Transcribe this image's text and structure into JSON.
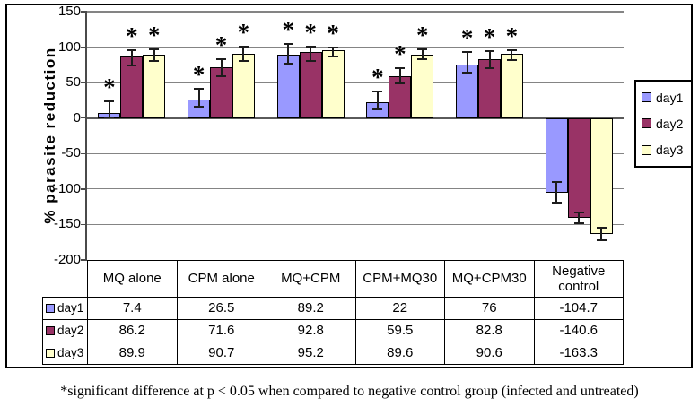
{
  "chart_data": {
    "type": "bar",
    "title": "",
    "ylabel": "% parasite reduction",
    "xlabel": "",
    "ylim": [
      -200,
      150
    ],
    "yticks": [
      150,
      100,
      50,
      0,
      -50,
      -100,
      -150,
      -200
    ],
    "grid": true,
    "legend_position": "right",
    "categories": [
      "MQ alone",
      "CPM alone",
      "MQ+CPM",
      "CPM+MQ30",
      "MQ+CPM30",
      "Negative control"
    ],
    "series": [
      {
        "name": "day1",
        "color": "#9999FF",
        "values": [
          7.4,
          26.5,
          89.2,
          22,
          76,
          -104.7
        ],
        "err_plus": [
          16,
          15,
          15,
          15,
          17,
          15
        ],
        "err_minus": [
          7,
          10,
          12,
          10,
          12,
          15
        ]
      },
      {
        "name": "day2",
        "color": "#993366",
        "values": [
          86.2,
          71.6,
          92.8,
          59.5,
          82.8,
          -140.6
        ],
        "err_plus": [
          9,
          12,
          8,
          11,
          12,
          8
        ],
        "err_minus": [
          12,
          12,
          12,
          11,
          12,
          8
        ]
      },
      {
        "name": "day3",
        "color": "#FFFFCC",
        "values": [
          89.9,
          90.7,
          95.2,
          89.6,
          90.6,
          -163.3
        ],
        "err_plus": [
          7,
          10,
          4,
          7,
          5,
          9
        ],
        "err_minus": [
          9,
          10,
          8,
          7,
          9,
          9
        ]
      }
    ],
    "significance": {
      "symbol": "*",
      "starred_categories": [
        true,
        true,
        true,
        true,
        true,
        false
      ]
    },
    "data_table": {
      "column_headers": [
        "MQ alone",
        "CPM alone",
        "MQ+CPM",
        "CPM+MQ30",
        "MQ+CPM30",
        "Negative control"
      ],
      "rows": [
        {
          "label": "day1",
          "swatch_color": "#9999FF",
          "values": [
            "7.4",
            "26.5",
            "89.2",
            "22",
            "76",
            "-104.7"
          ]
        },
        {
          "label": "day2",
          "swatch_color": "#993366",
          "values": [
            "86.2",
            "71.6",
            "92.8",
            "59.5",
            "82.8",
            "-140.6"
          ]
        },
        {
          "label": "day3",
          "swatch_color": "#FFFFCC",
          "values": [
            "89.9",
            "90.7",
            "95.2",
            "89.6",
            "90.6",
            "-163.3"
          ]
        }
      ]
    },
    "colors": {
      "gridline": "#848484",
      "axis": "#4a4a4a",
      "zero_line": "#5a5a5a",
      "bar_border": "#000000",
      "error_bar": "#1c1c1c"
    }
  },
  "footnote": "*significant difference at p < 0.05 when compared to negative control group (infected and untreated)"
}
